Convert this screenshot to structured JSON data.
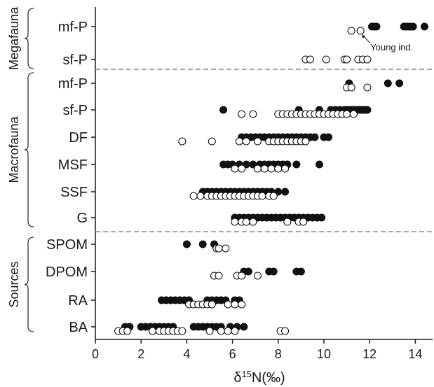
{
  "chart_data": {
    "type": "scatter",
    "xlabel": "δ15N(‰)",
    "xlim": [
      0,
      15
    ],
    "xticks": [
      0,
      2,
      4,
      6,
      8,
      10,
      12,
      14
    ],
    "grid": false,
    "groups": [
      {
        "name": "Megafauna",
        "categories": [
          "mf-P",
          "sf-P"
        ]
      },
      {
        "name": "Macrofauna",
        "categories": [
          "mf-P",
          "sf-P",
          "DF",
          "MSF",
          "SSF",
          "G"
        ]
      },
      {
        "name": "Sources",
        "categories": [
          "SPOM",
          "DPOM",
          "RA",
          "BA"
        ]
      }
    ],
    "legend": [
      {
        "marker": "filled-circle",
        "label": ""
      },
      {
        "marker": "open-circle",
        "label": ""
      }
    ],
    "annotation": {
      "text": "Young ind.",
      "category": "mf-P",
      "group": "Megafauna"
    },
    "rows": [
      {
        "group": "Megafauna",
        "category": "mf-P",
        "filled": [
          12.1,
          12.2,
          12.3,
          13.5,
          13.6,
          13.7,
          13.8,
          13.9,
          14.4
        ],
        "open": [
          11.2,
          11.6
        ]
      },
      {
        "group": "Megafauna",
        "category": "sf-P",
        "filled": [],
        "open": [
          9.2,
          9.4,
          10.1,
          10.9,
          11.0,
          11.5,
          11.7,
          11.9
        ]
      },
      {
        "group": "Macrofauna",
        "category": "mf-P",
        "filled": [
          11.1,
          12.8,
          13.3
        ],
        "open": [
          11.0,
          11.2,
          11.9
        ]
      },
      {
        "group": "Macrofauna",
        "category": "sf-P",
        "filled": [
          5.6,
          8.9,
          9.8,
          10.3,
          10.5,
          10.7,
          10.9,
          11.0,
          11.1,
          11.2,
          11.3,
          11.4,
          11.5,
          11.6,
          11.7,
          11.8,
          11.9
        ],
        "open": [
          6.4,
          6.9,
          8.0,
          8.2,
          8.4,
          8.6,
          8.8,
          9.0,
          9.2,
          9.4,
          9.6,
          9.8,
          10.0,
          10.2,
          10.4,
          10.6,
          10.8,
          11.0,
          11.3
        ]
      },
      {
        "group": "Macrofauna",
        "category": "DF",
        "filled": [
          6.4,
          6.6,
          6.8,
          7.0,
          7.2,
          7.4,
          7.6,
          7.8,
          8.0,
          8.2,
          8.4,
          8.6,
          8.8,
          9.0,
          9.2,
          9.4,
          9.6,
          10.0,
          10.2
        ],
        "open": [
          3.8,
          5.1,
          6.3,
          6.6,
          7.1,
          7.6,
          7.8,
          8.0,
          8.2,
          8.4,
          8.6,
          8.8,
          9.0,
          9.2
        ]
      },
      {
        "group": "Macrofauna",
        "category": "MSF",
        "filled": [
          5.6,
          5.8,
          6.0,
          6.3,
          6.6,
          6.9,
          7.2,
          7.4,
          7.6,
          7.8,
          8.0,
          8.2,
          8.4,
          8.8,
          9.8
        ],
        "open": [
          6.1,
          6.4,
          7.1,
          7.4,
          7.7,
          8.0,
          8.3
        ]
      },
      {
        "group": "Macrofauna",
        "category": "SSF",
        "filled": [
          4.7,
          4.9,
          5.1,
          5.3,
          5.5,
          5.7,
          5.9,
          6.1,
          6.3,
          6.5,
          6.7,
          6.9,
          7.1,
          7.3,
          7.5,
          7.7,
          8.0,
          8.3
        ],
        "open": [
          4.3,
          4.6,
          4.9,
          5.1,
          5.3,
          5.5,
          5.7,
          5.9,
          6.1,
          6.3,
          6.5,
          6.7,
          6.9,
          7.1,
          7.3,
          7.6,
          7.8
        ]
      },
      {
        "group": "Macrofauna",
        "category": "G",
        "filled": [
          6.1,
          6.3,
          6.5,
          6.7,
          6.9,
          7.1,
          7.3,
          7.5,
          7.7,
          7.9,
          8.1,
          8.3,
          8.5,
          8.7,
          8.9,
          9.1,
          9.3,
          9.5,
          9.7,
          9.9
        ],
        "open": [
          6.1,
          6.4,
          6.6,
          6.9,
          8.4,
          8.9,
          9.1
        ]
      },
      {
        "group": "Sources",
        "category": "SPOM",
        "filled": [
          4.0,
          4.7,
          5.2
        ],
        "open": [
          5.3,
          5.4,
          5.7
        ]
      },
      {
        "group": "Sources",
        "category": "DPOM",
        "filled": [
          6.5,
          6.7,
          7.6,
          7.8,
          8.8,
          9.0
        ],
        "open": [
          5.2,
          5.4,
          6.2,
          6.4,
          7.1
        ]
      },
      {
        "group": "Sources",
        "category": "RA",
        "filled": [
          2.9,
          3.1,
          3.3,
          3.5,
          3.7,
          3.9,
          4.1,
          4.9,
          5.1,
          5.3,
          5.5,
          5.7,
          6.1,
          6.3
        ],
        "open": [
          4.1,
          4.3,
          4.5,
          4.7,
          4.9,
          5.1,
          5.8,
          6.1,
          6.4
        ]
      },
      {
        "group": "Sources",
        "category": "BA",
        "filled": [
          1.3,
          1.5,
          2.0,
          2.2,
          2.4,
          2.6,
          2.8,
          3.0,
          3.2,
          3.4,
          4.3,
          4.5,
          4.7,
          4.9,
          5.1,
          5.3,
          5.5,
          5.9,
          6.2,
          6.5
        ],
        "open": [
          1.0,
          1.2,
          1.4,
          2.5,
          2.8,
          3.0,
          3.2,
          3.4,
          3.6,
          3.8,
          5.0,
          5.5,
          5.8,
          6.1,
          8.1,
          8.3
        ]
      }
    ]
  }
}
